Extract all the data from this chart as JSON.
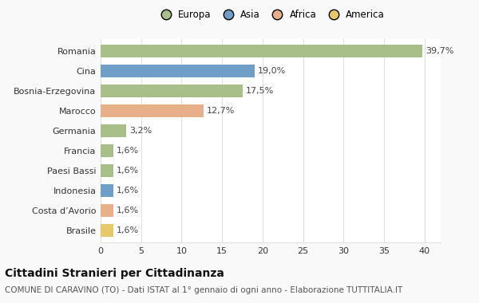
{
  "categories": [
    "Romania",
    "Cina",
    "Bosnia-Erzegovina",
    "Marocco",
    "Germania",
    "Francia",
    "Paesi Bassi",
    "Indonesia",
    "Costa d’Avorio",
    "Brasile"
  ],
  "values": [
    39.7,
    19.0,
    17.5,
    12.7,
    3.2,
    1.6,
    1.6,
    1.6,
    1.6,
    1.6
  ],
  "labels": [
    "39,7%",
    "19,0%",
    "17,5%",
    "12,7%",
    "3,2%",
    "1,6%",
    "1,6%",
    "1,6%",
    "1,6%",
    "1,6%"
  ],
  "colors": [
    "#a8bf8a",
    "#6f9ec9",
    "#a8bf8a",
    "#e8b08a",
    "#a8bf8a",
    "#a8bf8a",
    "#a8bf8a",
    "#6f9ec9",
    "#e8b08a",
    "#e8c96a"
  ],
  "legend_labels": [
    "Europa",
    "Asia",
    "Africa",
    "America"
  ],
  "legend_colors": [
    "#a8bf8a",
    "#6f9ec9",
    "#e8b08a",
    "#e8c96a"
  ],
  "title": "Cittadini Stranieri per Cittadinanza",
  "subtitle": "COMUNE DI CARAVINO (TO) - Dati ISTAT al 1° gennaio di ogni anno - Elaborazione TUTTITALIA.IT",
  "xlim": [
    0,
    42
  ],
  "xticks": [
    0,
    5,
    10,
    15,
    20,
    25,
    30,
    35,
    40
  ],
  "background_color": "#f9f9f9",
  "plot_bg_color": "#ffffff",
  "grid_color": "#e0e0e0",
  "title_fontsize": 10,
  "subtitle_fontsize": 7.5,
  "label_fontsize": 8,
  "tick_fontsize": 8,
  "legend_fontsize": 8.5
}
